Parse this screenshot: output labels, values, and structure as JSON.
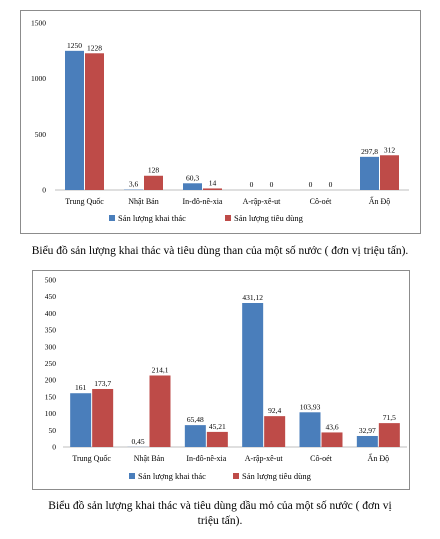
{
  "chart_data": [
    {
      "type": "bar",
      "categories": [
        "Trung Quốc",
        "Nhật Bản",
        "In-đô-nê-xia",
        "A-rập-xê-ut",
        "Cô-oét",
        "Ấn Độ"
      ],
      "series": [
        {
          "name": "Sản lượng khai thác",
          "color": "#4a7ebb",
          "values": [
            1250,
            3.6,
            60.3,
            0,
            0,
            297.8
          ],
          "labels": [
            "1250",
            "3,6",
            "60,3",
            "0",
            "0",
            "297,8"
          ]
        },
        {
          "name": "Sản lượng tiêu dùng",
          "color": "#be4b48",
          "values": [
            1228,
            128,
            14,
            0,
            0,
            312
          ],
          "labels": [
            "1228",
            "128",
            "14",
            "0",
            "0",
            "312"
          ]
        }
      ],
      "yticks": [
        0,
        500,
        1000,
        1500
      ],
      "ylim": [
        0,
        1500
      ],
      "legend": "bottom",
      "grid": false,
      "caption": "Biểu đồ sản lượng khai thác và tiêu dùng than của một số nước ( đơn vị triệu tấn)."
    },
    {
      "type": "bar",
      "categories": [
        "Trung Quốc",
        "Nhật Bản",
        "In-đô-nê-xia",
        "A-rập-xê-ut",
        "Cô-oét",
        "Ấn Độ"
      ],
      "series": [
        {
          "name": "Sản lượng khai thác",
          "color": "#4a7ebb",
          "values": [
            161,
            0.45,
            65.48,
            431.12,
            103.93,
            32.97
          ],
          "labels": [
            "161",
            "0,45",
            "65,48",
            "431,12",
            "103,93",
            "32,97"
          ]
        },
        {
          "name": "Sản lượng tiêu dùng",
          "color": "#be4b48",
          "values": [
            173.7,
            214.1,
            45.21,
            92.4,
            43.6,
            71.5
          ],
          "labels": [
            "173,7",
            "214,1",
            "45,21",
            "92,4",
            "43,6",
            "71,5"
          ]
        }
      ],
      "yticks": [
        0,
        50,
        100,
        150,
        200,
        250,
        300,
        350,
        400,
        450,
        500
      ],
      "ylim": [
        0,
        500
      ],
      "legend": "bottom",
      "grid": false,
      "caption": "Biểu đồ sản lượng khai thác và tiêu dùng dầu mỏ của một số nước ( đơn vị triệu tấn)."
    }
  ]
}
